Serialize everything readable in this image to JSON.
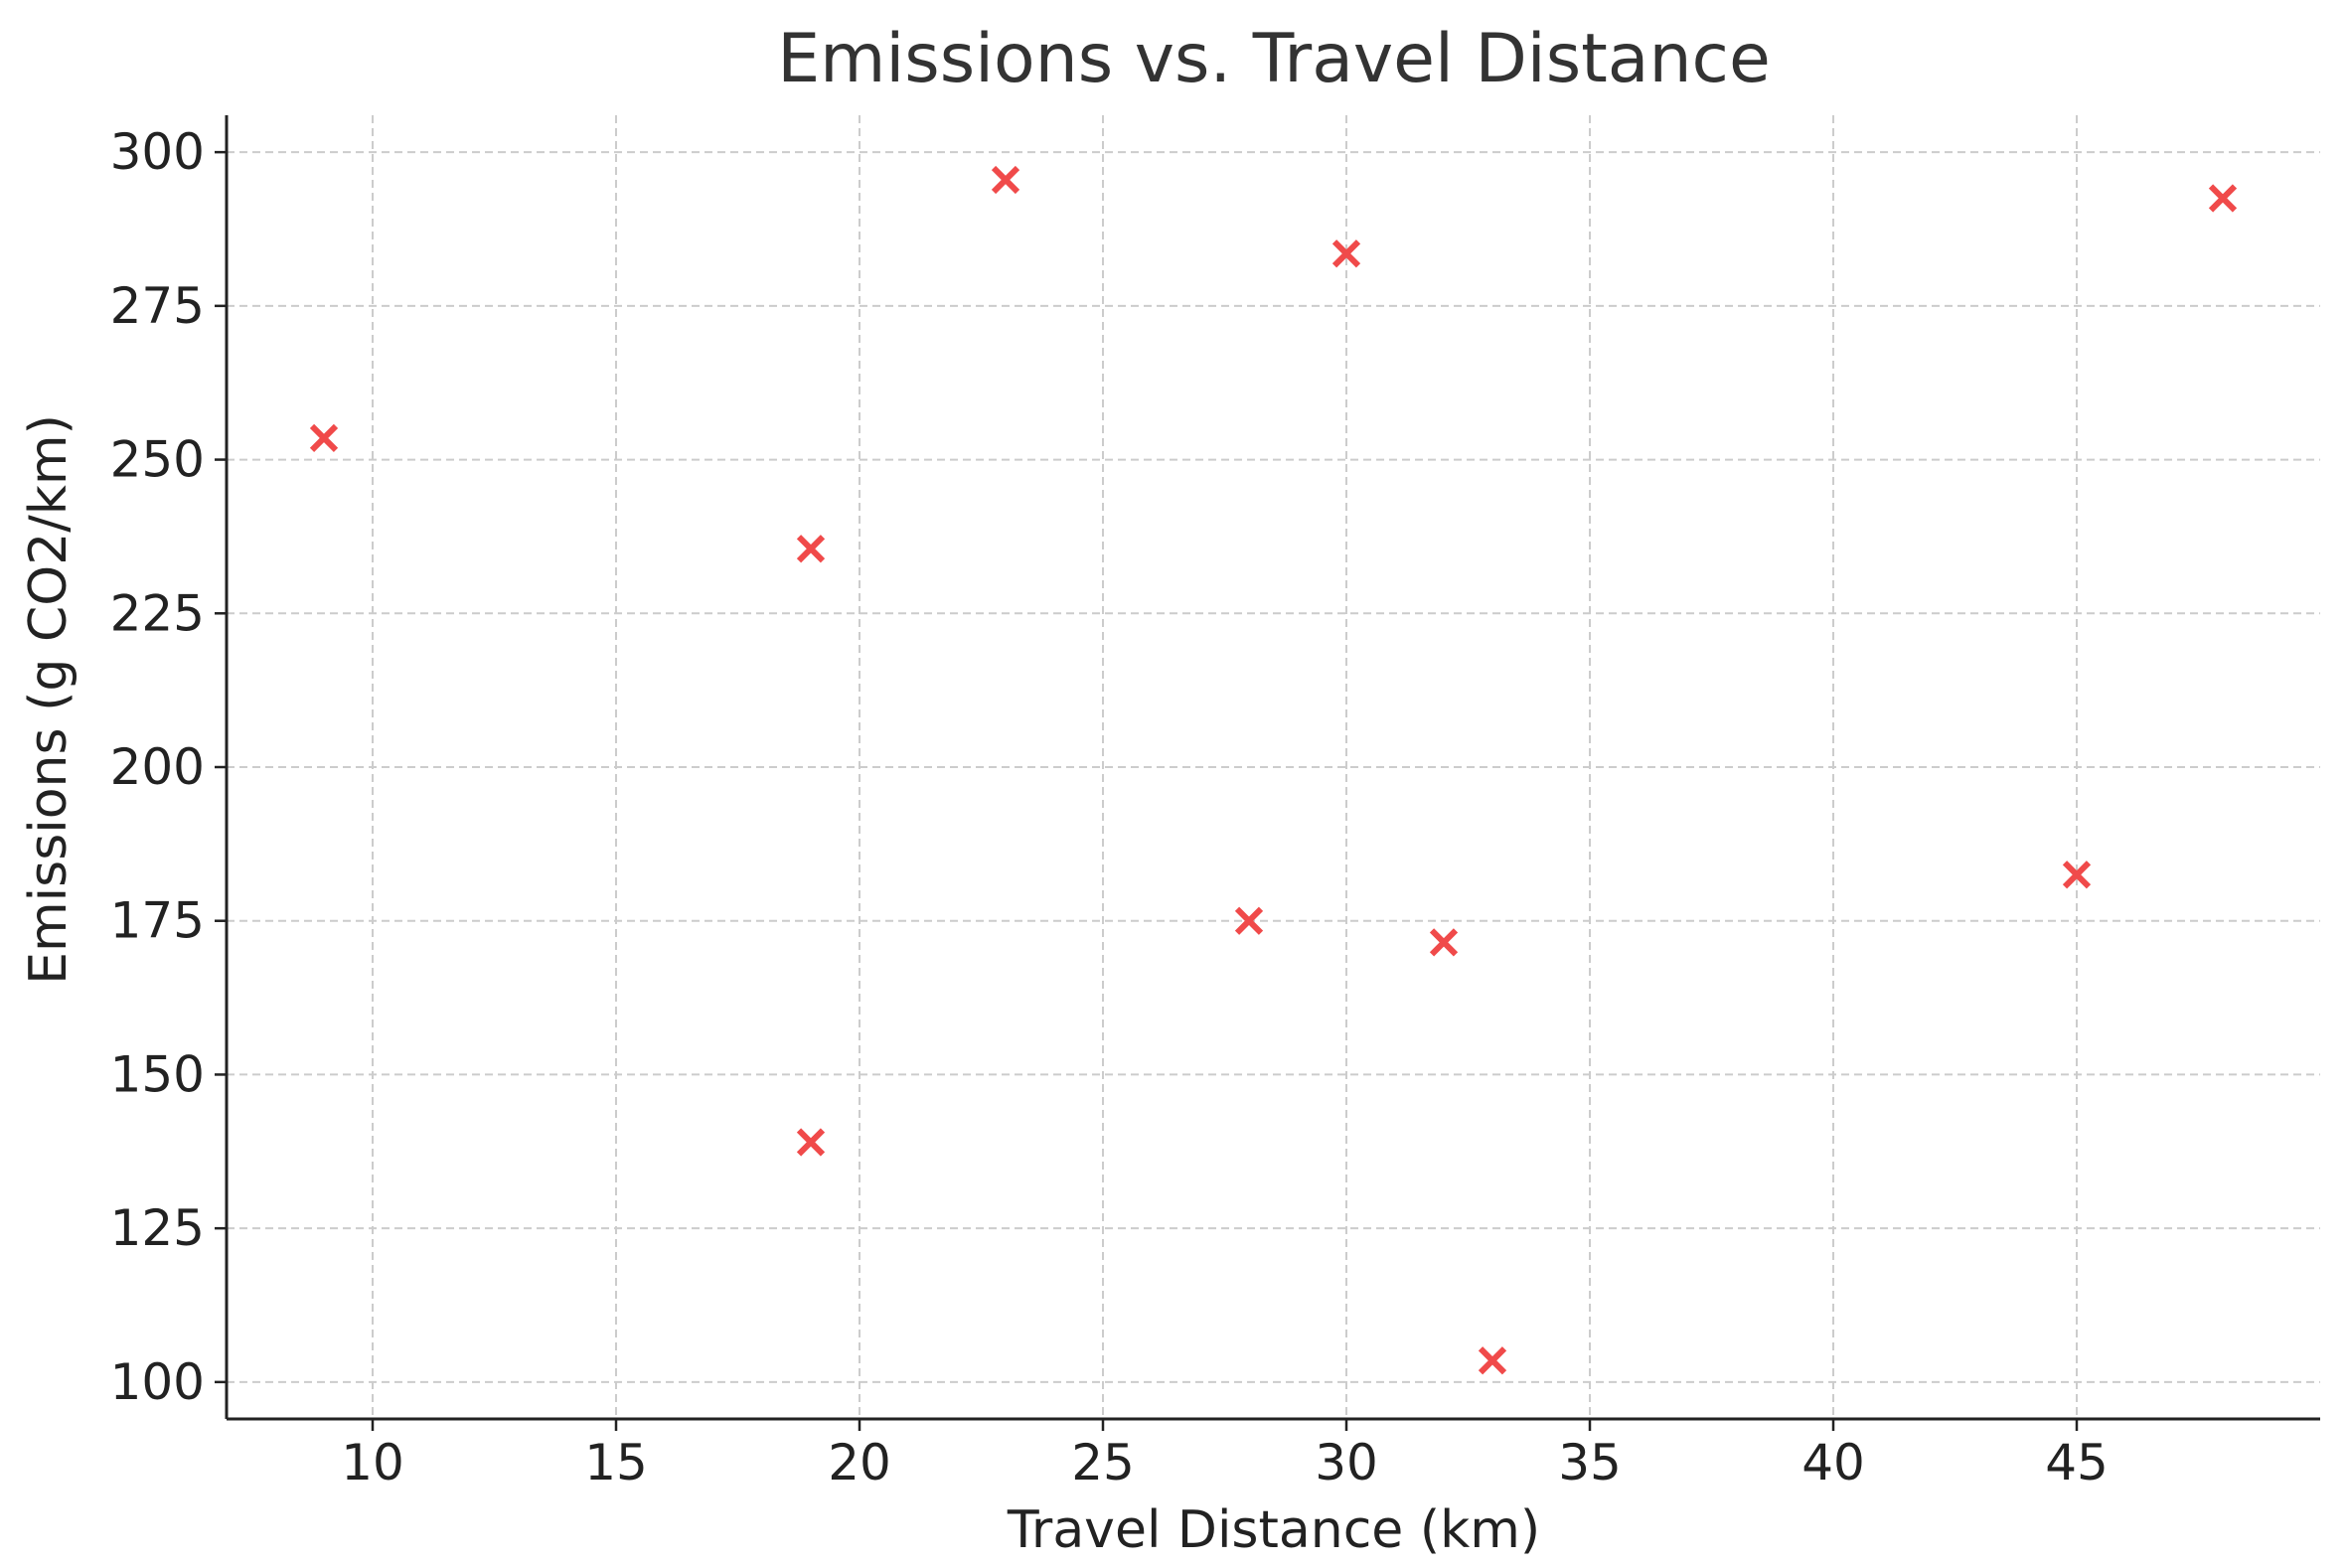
{
  "chart_data": {
    "type": "scatter",
    "title": "Emissions vs. Travel Distance",
    "xlabel": "Travel Distance (km)",
    "ylabel": "Emissions (g CO2/km)",
    "xlim": [
      7,
      50
    ],
    "ylim": [
      94,
      306
    ],
    "xticks": [
      10,
      15,
      20,
      25,
      30,
      35,
      40,
      45
    ],
    "yticks": [
      100,
      125,
      150,
      175,
      200,
      225,
      250,
      275,
      300
    ],
    "grid": true,
    "marker": "x",
    "marker_color": "#f04a4a",
    "points": [
      {
        "x": 9,
        "y": 253.5
      },
      {
        "x": 19,
        "y": 235.5
      },
      {
        "x": 19,
        "y": 139
      },
      {
        "x": 23,
        "y": 295.5
      },
      {
        "x": 28,
        "y": 175
      },
      {
        "x": 30,
        "y": 283.5
      },
      {
        "x": 32,
        "y": 171.5
      },
      {
        "x": 33,
        "y": 103.5
      },
      {
        "x": 45,
        "y": 182.5
      },
      {
        "x": 48,
        "y": 292.5
      }
    ]
  },
  "colors": {
    "title": "#333333",
    "axis": "#222222",
    "grid": "#cccccc",
    "tick_label": "#222222"
  }
}
